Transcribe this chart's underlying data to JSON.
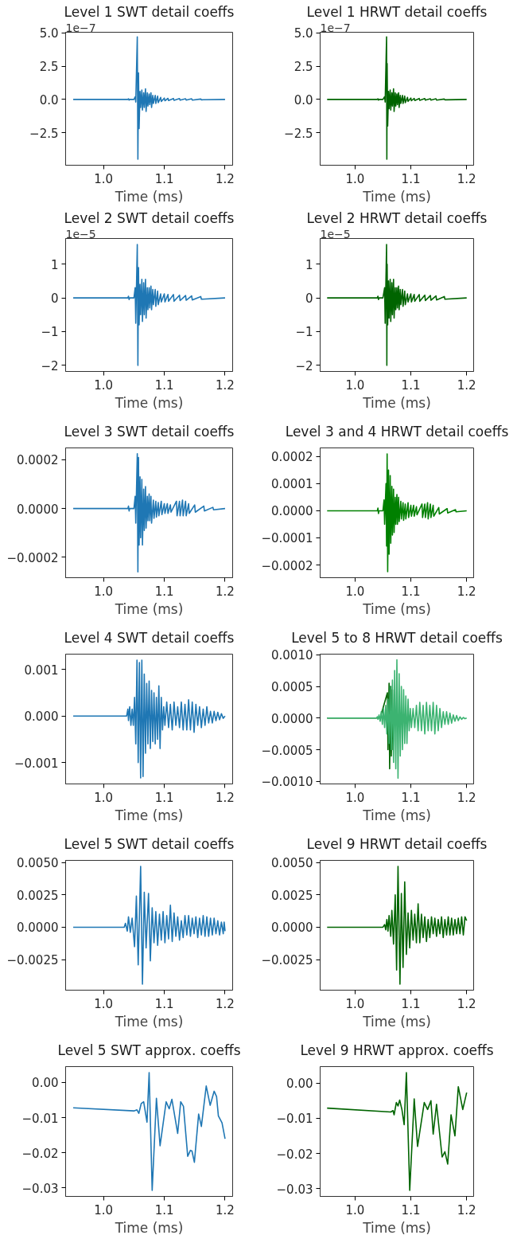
{
  "chart_data": [
    {
      "type": "line",
      "title": "Level 1 SWT detail coeffs",
      "xlabel": "Time (ms)",
      "annotations": [
        "1e−7"
      ],
      "xlim": [
        0.9375,
        1.2125
      ],
      "xticks": [
        {
          "value": 1.0,
          "label": "1.0"
        },
        {
          "value": 1.1,
          "label": "1.1"
        },
        {
          "value": 1.2,
          "label": "1.2"
        }
      ],
      "ylim": [
        -4.95,
        5.05
      ],
      "yticks": [
        {
          "value": -2.5,
          "label": "−2.5"
        },
        {
          "value": 0,
          "label": "0.0"
        },
        {
          "value": 2.5,
          "label": "2.5"
        },
        {
          "value": 5,
          "label": "5.0"
        }
      ],
      "series": [
        {
          "color": "#1f77b4",
          "x": [
            0.95,
            1.04,
            1.041,
            1.042,
            1.043,
            1.05,
            1.052,
            1.053,
            1.0555,
            1.0565,
            1.0575,
            1.0585,
            1.06,
            1.061,
            1.063,
            1.064,
            1.066,
            1.067,
            1.069,
            1.07,
            1.072,
            1.073,
            1.075,
            1.076,
            1.078,
            1.079,
            1.081,
            1.082,
            1.085,
            1.086,
            1.089,
            1.09,
            1.094,
            1.095,
            1.1,
            1.101,
            1.106,
            1.107,
            1.115,
            1.116,
            1.125,
            1.126,
            1.135,
            1.136,
            1.145,
            1.146,
            1.16,
            1.161,
            1.2
          ],
          "values": [
            0,
            0,
            0.05,
            -0.05,
            0,
            0,
            0.2,
            -0.2,
            4.7,
            -4.5,
            2.0,
            -2.2,
            0.6,
            -0.6,
            0.7,
            -0.8,
            0.5,
            -0.6,
            0.8,
            -0.9,
            0.5,
            -0.5,
            0.4,
            -0.4,
            0.5,
            -0.6,
            0.3,
            -0.3,
            0.3,
            -0.3,
            0.25,
            -0.25,
            0.15,
            -0.15,
            0.1,
            -0.1,
            0.08,
            -0.08,
            0.07,
            -0.07,
            0.06,
            -0.06,
            0.05,
            -0.05,
            0.05,
            -0.05,
            0.03,
            -0.03,
            0
          ]
        }
      ]
    },
    {
      "type": "line",
      "title": "Level 1 HRWT detail coeffs",
      "xlabel": "Time (ms)",
      "annotations": [
        "1e−7"
      ],
      "xlim": [
        0.9375,
        1.2125
      ],
      "xticks": [
        {
          "value": 1.0,
          "label": "1.0"
        },
        {
          "value": 1.1,
          "label": "1.1"
        },
        {
          "value": 1.2,
          "label": "1.2"
        }
      ],
      "ylim": [
        -4.95,
        5.05
      ],
      "yticks": [
        {
          "value": -2.5,
          "label": "−2.5"
        },
        {
          "value": 0,
          "label": "0.0"
        },
        {
          "value": 2.5,
          "label": "2.5"
        },
        {
          "value": 5,
          "label": "5.0"
        }
      ],
      "series": [
        {
          "color": "#006400",
          "x": [
            0.95,
            1.04,
            1.041,
            1.042,
            1.043,
            1.05,
            1.053,
            1.054,
            1.0565,
            1.057,
            1.0575,
            1.0585,
            1.06,
            1.061,
            1.063,
            1.064,
            1.066,
            1.067,
            1.069,
            1.07,
            1.072,
            1.073,
            1.075,
            1.076,
            1.078,
            1.079,
            1.081,
            1.082,
            1.085,
            1.086,
            1.089,
            1.09,
            1.094,
            1.095,
            1.1,
            1.101,
            1.106,
            1.107,
            1.115,
            1.116,
            1.125,
            1.126,
            1.135,
            1.136,
            1.145,
            1.146,
            1.16,
            1.161,
            1.2
          ],
          "values": [
            0,
            0,
            0.05,
            -0.05,
            0,
            0,
            0.2,
            -0.2,
            4.7,
            -4.5,
            2.7,
            -2.0,
            0.6,
            -0.7,
            0.7,
            -0.8,
            0.5,
            -0.5,
            0.8,
            -0.9,
            0.5,
            -0.5,
            0.4,
            -0.4,
            0.5,
            -0.6,
            0.3,
            -0.3,
            0.3,
            -0.3,
            0.25,
            -0.25,
            0.15,
            -0.15,
            0.1,
            -0.1,
            0.08,
            -0.08,
            0.07,
            -0.07,
            0.06,
            -0.06,
            0.05,
            -0.05,
            0.05,
            -0.05,
            0.03,
            -0.03,
            0
          ]
        }
      ]
    },
    {
      "type": "line",
      "title": "Level 2 SWT detail coeffs",
      "xlabel": "Time (ms)",
      "annotations": [
        "1e−5"
      ],
      "xlim": [
        0.9375,
        1.2125
      ],
      "xticks": [
        {
          "value": 1.0,
          "label": "1.0"
        },
        {
          "value": 1.1,
          "label": "1.1"
        },
        {
          "value": 1.2,
          "label": "1.2"
        }
      ],
      "ylim": [
        -2.18,
        1.76
      ],
      "yticks": [
        {
          "value": -2,
          "label": "−2"
        },
        {
          "value": -1,
          "label": "−1"
        },
        {
          "value": 0,
          "label": "0"
        },
        {
          "value": 1,
          "label": "1"
        }
      ],
      "series": [
        {
          "color": "#1f77b4",
          "x": [
            0.95,
            1.04,
            1.041,
            1.042,
            1.043,
            1.05,
            1.052,
            1.053,
            1.0555,
            1.0565,
            1.0575,
            1.0585,
            1.06,
            1.061,
            1.063,
            1.064,
            1.066,
            1.067,
            1.069,
            1.07,
            1.072,
            1.073,
            1.075,
            1.076,
            1.078,
            1.079,
            1.081,
            1.082,
            1.085,
            1.086,
            1.089,
            1.09,
            1.094,
            1.095,
            1.1,
            1.101,
            1.106,
            1.107,
            1.115,
            1.116,
            1.125,
            1.126,
            1.135,
            1.136,
            1.145,
            1.146,
            1.16,
            1.161,
            1.2
          ],
          "values": [
            0,
            0,
            0.05,
            -0.05,
            0,
            0,
            0.3,
            -0.75,
            1.58,
            -2.0,
            0.9,
            -0.8,
            0.4,
            -0.5,
            0.55,
            -0.7,
            0.45,
            -0.5,
            0.55,
            -0.6,
            0.3,
            -0.35,
            0.3,
            -0.3,
            0.35,
            -0.35,
            0.25,
            -0.2,
            0.25,
            -0.25,
            0.2,
            -0.2,
            0.12,
            -0.12,
            0.12,
            -0.12,
            0.1,
            -0.1,
            0.1,
            -0.1,
            0.08,
            -0.08,
            0.07,
            -0.07,
            0.06,
            -0.06,
            0.04,
            -0.04,
            0
          ]
        }
      ]
    },
    {
      "type": "line",
      "title": "Level 2 HRWT detail coeffs",
      "xlabel": "Time (ms)",
      "annotations": [
        "1e−5"
      ],
      "xlim": [
        0.9375,
        1.2125
      ],
      "xticks": [
        {
          "value": 1.0,
          "label": "1.0"
        },
        {
          "value": 1.1,
          "label": "1.1"
        },
        {
          "value": 1.2,
          "label": "1.2"
        }
      ],
      "ylim": [
        -2.18,
        1.76
      ],
      "yticks": [
        {
          "value": -2,
          "label": "−2"
        },
        {
          "value": -1,
          "label": "−1"
        },
        {
          "value": 0,
          "label": "0"
        },
        {
          "value": 1,
          "label": "1"
        }
      ],
      "series": [
        {
          "color": "#006400",
          "x": [
            0.95,
            1.04,
            1.041,
            1.042,
            1.043,
            1.05,
            1.053,
            1.054,
            1.0565,
            1.057,
            1.0575,
            1.0585,
            1.06,
            1.061,
            1.063,
            1.064,
            1.066,
            1.067,
            1.069,
            1.07,
            1.072,
            1.073,
            1.075,
            1.076,
            1.078,
            1.079,
            1.081,
            1.082,
            1.085,
            1.086,
            1.089,
            1.09,
            1.094,
            1.095,
            1.1,
            1.101,
            1.106,
            1.107,
            1.115,
            1.116,
            1.125,
            1.126,
            1.135,
            1.136,
            1.145,
            1.146,
            1.16,
            1.161,
            1.2
          ],
          "values": [
            0,
            0,
            0.05,
            -0.05,
            0,
            0,
            0.3,
            -0.75,
            1.58,
            -2.0,
            1.0,
            -0.8,
            0.5,
            -0.6,
            0.55,
            -0.7,
            0.45,
            -0.5,
            0.55,
            -0.6,
            0.3,
            -0.35,
            0.3,
            -0.3,
            0.35,
            -0.35,
            0.25,
            -0.2,
            0.25,
            -0.25,
            0.2,
            -0.2,
            0.12,
            -0.12,
            0.12,
            -0.12,
            0.1,
            -0.1,
            0.1,
            -0.1,
            0.08,
            -0.08,
            0.07,
            -0.07,
            0.06,
            -0.06,
            0.04,
            -0.04,
            0
          ]
        }
      ]
    },
    {
      "type": "line",
      "title": "Level 3 SWT detail coeffs",
      "xlabel": "Time (ms)",
      "xlim": [
        0.9375,
        1.2125
      ],
      "xticks": [
        {
          "value": 1.0,
          "label": "1.0"
        },
        {
          "value": 1.1,
          "label": "1.1"
        },
        {
          "value": 1.2,
          "label": "1.2"
        }
      ],
      "ylim": [
        -0.000284,
        0.000249
      ],
      "yticks": [
        {
          "value": -0.0002,
          "label": "−0.0002"
        },
        {
          "value": 0,
          "label": "0.0000"
        },
        {
          "value": 0.0002,
          "label": "0.0002"
        }
      ],
      "series": [
        {
          "color": "#1f77b4",
          "x": [
            0.95,
            1.04,
            1.041,
            1.042,
            1.043,
            1.05,
            1.052,
            1.053,
            1.0555,
            1.0565,
            1.0575,
            1.0585,
            1.06,
            1.061,
            1.063,
            1.064,
            1.066,
            1.067,
            1.069,
            1.07,
            1.072,
            1.073,
            1.075,
            1.076,
            1.078,
            1.079,
            1.082,
            1.083,
            1.086,
            1.087,
            1.09,
            1.091,
            1.095,
            1.096,
            1.1,
            1.101,
            1.105,
            1.106,
            1.11,
            1.111,
            1.12,
            1.121,
            1.125,
            1.126,
            1.13,
            1.131,
            1.135,
            1.136,
            1.14,
            1.141,
            1.15,
            1.151,
            1.165,
            1.166,
            1.18,
            1.181,
            1.2
          ],
          "values": [
            0,
            0,
            1e-05,
            -1e-05,
            0,
            0,
            5e-05,
            -6e-05,
            0.000225,
            -0.00026,
            0.00021,
            -0.00015,
            0.00013,
            -0.00012,
            0.00012,
            -0.00015,
            8e-05,
            -9e-05,
            9e-05,
            -8e-05,
            5e-05,
            -5e-05,
            6e-05,
            -5e-05,
            5e-05,
            -6e-05,
            3.5e-05,
            -4e-05,
            3e-05,
            -3.5e-05,
            2.5e-05,
            -3e-05,
            3e-05,
            -2.5e-05,
            2e-05,
            -2e-05,
            2e-05,
            -2e-05,
            1.5e-05,
            -1.5e-05,
            3e-05,
            -3e-05,
            3e-05,
            -3e-05,
            3.5e-05,
            -3e-05,
            3e-05,
            -3e-05,
            2e-05,
            -2e-05,
            1.5e-05,
            -1.5e-05,
            1e-05,
            -1e-05,
            5e-06,
            -5e-06,
            0
          ]
        }
      ]
    },
    {
      "type": "line",
      "title": "Level 3 and 4 HRWT detail coeffs",
      "xlabel": "Time (ms)",
      "xlim": [
        0.9375,
        1.2125
      ],
      "xticks": [
        {
          "value": 1.0,
          "label": "1.0"
        },
        {
          "value": 1.1,
          "label": "1.1"
        },
        {
          "value": 1.2,
          "label": "1.2"
        }
      ],
      "ylim": [
        -0.000247,
        0.000232
      ],
      "yticks": [
        {
          "value": -0.0002,
          "label": "−0.0002"
        },
        {
          "value": -0.0001,
          "label": "−0.0001"
        },
        {
          "value": 0,
          "label": "0.0000"
        },
        {
          "value": 0.0001,
          "label": "0.0001"
        },
        {
          "value": 0.0002,
          "label": "0.0002"
        }
      ],
      "series": [
        {
          "color": "#008000",
          "x": [
            0.95,
            1.04,
            1.041,
            1.042,
            1.043,
            1.05,
            1.052,
            1.053,
            1.0555,
            1.0565,
            1.0575,
            1.0585,
            1.06,
            1.061,
            1.063,
            1.064,
            1.066,
            1.067,
            1.069,
            1.07,
            1.072,
            1.073,
            1.075,
            1.076,
            1.078,
            1.079,
            1.082,
            1.083,
            1.086,
            1.087,
            1.09,
            1.091,
            1.095,
            1.096,
            1.1,
            1.101,
            1.105,
            1.106,
            1.11,
            1.111,
            1.12,
            1.121,
            1.125,
            1.126,
            1.13,
            1.131,
            1.135,
            1.136,
            1.14,
            1.141,
            1.15,
            1.151,
            1.165,
            1.166,
            1.18,
            1.181,
            1.2
          ],
          "values": [
            0,
            0,
            1e-05,
            -1e-05,
            0,
            0,
            4e-05,
            -5e-05,
            0.0001,
            -0.00013,
            0.00021,
            -0.000225,
            0.00015,
            -0.00016,
            0.00013,
            -0.00012,
            9e-05,
            -9e-05,
            8e-05,
            -8e-05,
            5e-05,
            -5e-05,
            6e-05,
            -5e-05,
            5e-05,
            -4e-05,
            3.5e-05,
            -3e-05,
            3e-05,
            -3.5e-05,
            2.5e-05,
            -3e-05,
            3e-05,
            -2.5e-05,
            2e-05,
            -2e-05,
            2e-05,
            -2e-05,
            1.5e-05,
            -1.5e-05,
            2.5e-05,
            -2.5e-05,
            2.5e-05,
            -2.5e-05,
            3e-05,
            -3e-05,
            2.5e-05,
            -2.5e-05,
            2e-05,
            -2e-05,
            1.2e-05,
            -1.2e-05,
            8e-06,
            -8e-06,
            4e-06,
            -4e-06,
            0
          ]
        }
      ]
    },
    {
      "type": "line",
      "title": "Level 4 SWT detail coeffs",
      "xlabel": "Time (ms)",
      "xlim": [
        0.9375,
        1.2125
      ],
      "xticks": [
        {
          "value": 1.0,
          "label": "1.0"
        },
        {
          "value": 1.1,
          "label": "1.1"
        },
        {
          "value": 1.2,
          "label": "1.2"
        }
      ],
      "ylim": [
        -0.00146,
        0.00133
      ],
      "yticks": [
        {
          "value": -0.001,
          "label": "−0.001"
        },
        {
          "value": 0,
          "label": "0.000"
        },
        {
          "value": 0.001,
          "label": "0.001"
        }
      ],
      "series": [
        {
          "color": "#1f77b4",
          "x": [
            0.95,
            1.038,
            1.04,
            1.041,
            1.043,
            1.045,
            1.047,
            1.049,
            1.051,
            1.053,
            1.055,
            1.057,
            1.059,
            1.061,
            1.063,
            1.065,
            1.067,
            1.069,
            1.071,
            1.073,
            1.075,
            1.077,
            1.079,
            1.081,
            1.083,
            1.085,
            1.087,
            1.089,
            1.091,
            1.093,
            1.095,
            1.097,
            1.099,
            1.101,
            1.104,
            1.107,
            1.11,
            1.113,
            1.116,
            1.119,
            1.122,
            1.125,
            1.128,
            1.131,
            1.134,
            1.137,
            1.14,
            1.143,
            1.146,
            1.149,
            1.152,
            1.155,
            1.158,
            1.161,
            1.164,
            1.167,
            1.17,
            1.173,
            1.176,
            1.179,
            1.182,
            1.185,
            1.188,
            1.191,
            1.194,
            1.197,
            1.2
          ],
          "values": [
            0,
            0,
            0.00015,
            -0.0001,
            0.0002,
            -0.0002,
            0.00015,
            -0.0002,
            0.0004,
            -0.0006,
            0.0012,
            -0.001,
            0.00115,
            -0.00133,
            0.0012,
            -0.0013,
            0.0009,
            -0.0008,
            0.0007,
            -0.0006,
            0.00075,
            -0.0007,
            0.00055,
            -0.00055,
            0.0005,
            -0.0006,
            0.0004,
            -0.0005,
            0.00065,
            -0.0007,
            0.0004,
            -0.0003,
            0.0002,
            -0.0002,
            0.0003,
            -0.00025,
            0.00025,
            -0.0003,
            0.0003,
            -0.0002,
            0.0002,
            -0.00025,
            0.0003,
            -0.0003,
            0.00025,
            -0.0003,
            0.00035,
            -0.0003,
            0.0003,
            -0.00035,
            0.00025,
            -0.0002,
            0.0002,
            -0.00025,
            0.00015,
            -0.0002,
            0.0002,
            -0.00015,
            0.0001,
            -0.00015,
            0.0001,
            -0.0001,
            8e-05,
            -8e-05,
            5e-05,
            -5e-05,
            0
          ]
        }
      ]
    },
    {
      "type": "line",
      "title": "Level 5 to 8 HRWT detail coeffs",
      "xlabel": "Time (ms)",
      "xlim": [
        0.9375,
        1.2125
      ],
      "xticks": [
        {
          "value": 1.0,
          "label": "1.0"
        },
        {
          "value": 1.1,
          "label": "1.1"
        },
        {
          "value": 1.2,
          "label": "1.2"
        }
      ],
      "ylim": [
        -0.00104,
        0.00101
      ],
      "yticks": [
        {
          "value": -0.001,
          "label": "−0.0010"
        },
        {
          "value": -0.0005,
          "label": "−0.0005"
        },
        {
          "value": 0,
          "label": "0.0000"
        },
        {
          "value": 0.0005,
          "label": "0.0005"
        },
        {
          "value": 0.001,
          "label": "0.0010"
        }
      ],
      "series": [
        {
          "color": "#006400",
          "x": [
            0.95,
            1.045,
            1.058,
            1.059,
            1.061,
            1.062,
            1.064,
            1.065,
            1.067,
            1.068,
            1.07
          ],
          "values": [
            0,
            0,
            0.0004,
            -0.0005,
            0.00055,
            -0.0008,
            0.0005,
            -0.0006,
            0.00045,
            -0.0005,
            0
          ]
        },
        {
          "color": "#3cb371",
          "x": [
            0.95,
            1.038,
            1.04,
            1.041,
            1.043,
            1.045,
            1.047,
            1.049,
            1.051,
            1.053,
            1.055,
            1.057,
            1.059,
            1.061,
            1.063,
            1.065,
            1.067,
            1.069,
            1.071,
            1.073,
            1.075,
            1.077,
            1.079,
            1.081,
            1.083,
            1.085,
            1.087,
            1.089,
            1.091,
            1.093,
            1.095,
            1.097,
            1.099,
            1.101,
            1.104,
            1.107,
            1.11,
            1.113,
            1.116,
            1.119,
            1.122,
            1.125,
            1.128,
            1.131,
            1.134,
            1.137,
            1.14,
            1.143,
            1.146,
            1.149,
            1.152,
            1.155,
            1.158,
            1.161,
            1.164,
            1.167,
            1.17,
            1.173,
            1.176,
            1.179,
            1.182,
            1.185,
            1.188,
            1.191,
            1.194,
            1.197,
            1.2
          ],
          "values": [
            0,
            0,
            2e-05,
            -2e-05,
            5e-05,
            -5e-05,
            0.0001,
            -0.0001,
            0.00015,
            -0.00015,
            0.0002,
            -0.00025,
            0.0003,
            -0.0004,
            0.0005,
            -0.0005,
            0.0006,
            -0.0007,
            0.00075,
            -0.0008,
            0.00092,
            -0.00095,
            0.0007,
            -0.0006,
            0.0005,
            -0.0005,
            0.00045,
            -0.0004,
            0.00035,
            -0.0004,
            0.0003,
            -0.0002,
            0.00015,
            -0.00015,
            0.00015,
            -0.00015,
            0.0002,
            -0.0002,
            0.00025,
            -0.0002,
            0.0002,
            -0.00025,
            0.00025,
            -0.0002,
            0.0002,
            -0.0002,
            0.00025,
            -0.00025,
            0.0002,
            -0.0002,
            0.00015,
            -0.00015,
            0.0001,
            -0.0001,
            0.0001,
            -0.0001,
            8e-05,
            -8e-05,
            5e-05,
            -5e-05,
            4e-05,
            -4e-05,
            2e-05,
            -2e-05,
            1e-05,
            -1e-05,
            0
          ]
        }
      ]
    },
    {
      "type": "line",
      "title": "Level 5 SWT detail coeffs",
      "xlabel": "Time (ms)",
      "xlim": [
        0.9375,
        1.2125
      ],
      "xticks": [
        {
          "value": 1.0,
          "label": "1.0"
        },
        {
          "value": 1.1,
          "label": "1.1"
        },
        {
          "value": 1.2,
          "label": "1.2"
        }
      ],
      "ylim": [
        -0.00486,
        0.00516
      ],
      "yticks": [
        {
          "value": -0.0025,
          "label": "−0.0025"
        },
        {
          "value": 0,
          "label": "0.0000"
        },
        {
          "value": 0.0025,
          "label": "0.0025"
        },
        {
          "value": 0.005,
          "label": "0.0050"
        }
      ],
      "series": [
        {
          "color": "#1f77b4",
          "x": [
            0.95,
            1.034,
            1.036,
            1.039,
            1.041,
            1.044,
            1.047,
            1.051,
            1.054,
            1.057,
            1.061,
            1.064,
            1.067,
            1.07,
            1.074,
            1.077,
            1.08,
            1.083,
            1.086,
            1.089,
            1.092,
            1.095,
            1.098,
            1.101,
            1.104,
            1.107,
            1.11,
            1.113,
            1.116,
            1.119,
            1.122,
            1.125,
            1.128,
            1.131,
            1.134,
            1.137,
            1.14,
            1.143,
            1.146,
            1.149,
            1.152,
            1.155,
            1.158,
            1.161,
            1.164,
            1.167,
            1.17,
            1.173,
            1.176,
            1.179,
            1.182,
            1.185,
            1.188,
            1.191,
            1.194,
            1.197,
            1.1985,
            1.2
          ],
          "values": [
            0,
            0,
            0.0003,
            -0.0003,
            0.0008,
            -0.0004,
            0.0007,
            -0.0015,
            0.0024,
            -0.0029,
            0.0047,
            -0.0044,
            0.0027,
            -0.0016,
            0.0026,
            -0.0026,
            0.0015,
            -0.0012,
            0.0012,
            -0.0014,
            0.001,
            -0.001,
            0.0012,
            -0.0012,
            0.0009,
            -0.0009,
            0.0017,
            -0.0011,
            0.0011,
            -0.0007,
            0.0008,
            -0.001,
            0.0005,
            -0.0008,
            0.0009,
            -0.0006,
            0.0009,
            -0.0007,
            0.0007,
            -0.0005,
            0.0008,
            -0.0008,
            0.0007,
            -0.0006,
            0.0009,
            -0.0007,
            0.0008,
            -0.0007,
            0.0007,
            -0.0006,
            0.0007,
            -0.0005,
            0.0005,
            -0.0006,
            0.0004,
            -0.0005,
            0.0004,
            -0.0003
          ]
        }
      ]
    },
    {
      "type": "line",
      "title": "Level 9 HRWT detail coeffs",
      "xlabel": "Time (ms)",
      "xlim": [
        0.9375,
        1.2125
      ],
      "xticks": [
        {
          "value": 1.0,
          "label": "1.0"
        },
        {
          "value": 1.1,
          "label": "1.1"
        },
        {
          "value": 1.2,
          "label": "1.2"
        }
      ],
      "ylim": [
        -0.00486,
        0.00516
      ],
      "yticks": [
        {
          "value": -0.0025,
          "label": "−0.0025"
        },
        {
          "value": 0,
          "label": "0.0000"
        },
        {
          "value": 0.0025,
          "label": "0.0025"
        },
        {
          "value": 0.005,
          "label": "0.0050"
        }
      ],
      "series": [
        {
          "color": "#006400",
          "x": [
            0.95,
            1.05,
            1.053,
            1.055,
            1.057,
            1.059,
            1.061,
            1.064,
            1.066,
            1.069,
            1.072,
            1.0745,
            1.077,
            1.0805,
            1.083,
            1.086,
            1.089,
            1.092,
            1.095,
            1.098,
            1.101,
            1.104,
            1.107,
            1.11,
            1.113,
            1.116,
            1.119,
            1.122,
            1.125,
            1.128,
            1.131,
            1.134,
            1.137,
            1.14,
            1.143,
            1.146,
            1.149,
            1.152,
            1.155,
            1.158,
            1.161,
            1.164,
            1.167,
            1.17,
            1.173,
            1.176,
            1.179,
            1.182,
            1.185,
            1.188,
            1.191,
            1.194,
            1.197,
            1.2
          ],
          "values": [
            0,
            0,
            0.0002,
            -0.0002,
            0.0006,
            -0.0003,
            0.0009,
            -0.0007,
            0.0013,
            -0.0013,
            0.0025,
            -0.0033,
            0.0047,
            -0.0044,
            0.0026,
            -0.0031,
            0.0035,
            -0.0021,
            0.0011,
            -0.0016,
            0.0013,
            -0.001,
            0.001,
            -0.0012,
            0.0018,
            -0.0012,
            0.001,
            -0.0008,
            0.0008,
            -0.0011,
            0.0006,
            -0.0008,
            0.0008,
            -0.0005,
            0.0007,
            -0.0007,
            0.0006,
            -0.0005,
            0.0008,
            -0.0008,
            0.0006,
            -0.0006,
            0.0008,
            -0.0006,
            0.0007,
            -0.0006,
            0.0006,
            -0.0005,
            0.0007,
            -0.0005,
            0.0008,
            -0.0006,
            0.0008,
            0.0005
          ]
        }
      ]
    },
    {
      "type": "line",
      "title": "Level 5 SWT approx. coeffs",
      "xlabel": "Time (ms)",
      "xlim": [
        0.9375,
        1.2125
      ],
      "xticks": [
        {
          "value": 1.0,
          "label": "1.0"
        },
        {
          "value": 1.1,
          "label": "1.1"
        },
        {
          "value": 1.2,
          "label": "1.2"
        }
      ],
      "ylim": [
        -0.0324,
        0.0045
      ],
      "yticks": [
        {
          "value": -0.03,
          "label": "−0.03"
        },
        {
          "value": -0.02,
          "label": "−0.02"
        },
        {
          "value": -0.01,
          "label": "−0.01"
        },
        {
          "value": 0,
          "label": "0.00"
        }
      ],
      "series": [
        {
          "color": "#1f77b4",
          "x": [
            0.95,
            1.05,
            1.055,
            1.058,
            1.062,
            1.066,
            1.0715,
            1.075,
            1.08,
            1.087,
            1.093,
            1.103,
            1.108,
            1.1125,
            1.122,
            1.127,
            1.1315,
            1.1385,
            1.143,
            1.1455,
            1.1495,
            1.1565,
            1.161,
            1.169,
            1.1755,
            1.182,
            1.186,
            1.189,
            1.195,
            1.2
          ],
          "values": [
            -0.0072,
            -0.0081,
            -0.0078,
            -0.0088,
            -0.006,
            -0.0055,
            -0.0113,
            0.0028,
            -0.0307,
            -0.0045,
            -0.018,
            -0.0055,
            -0.0075,
            -0.0048,
            -0.0145,
            -0.0055,
            -0.0068,
            -0.021,
            -0.0193,
            -0.0195,
            -0.0227,
            -0.009,
            -0.0125,
            -0.001,
            -0.0065,
            -0.0025,
            -0.004,
            -0.0095,
            -0.0115,
            -0.016
          ]
        }
      ]
    },
    {
      "type": "line",
      "title": "Level 9 HRWT approx. coeffs",
      "xlabel": "Time (ms)",
      "xlim": [
        0.9375,
        1.2125
      ],
      "xticks": [
        {
          "value": 1.0,
          "label": "1.0"
        },
        {
          "value": 1.1,
          "label": "1.1"
        },
        {
          "value": 1.2,
          "label": "1.2"
        }
      ],
      "ylim": [
        -0.0322,
        0.0047
      ],
      "yticks": [
        {
          "value": -0.03,
          "label": "−0.03"
        },
        {
          "value": -0.02,
          "label": "−0.02"
        },
        {
          "value": -0.01,
          "label": "−0.01"
        },
        {
          "value": 0,
          "label": "0.00"
        }
      ],
      "series": [
        {
          "color": "#006400",
          "x": [
            0.95,
            1.064,
            1.068,
            1.07,
            1.074,
            1.077,
            1.08,
            1.084,
            1.088,
            1.092,
            1.098,
            1.106,
            1.112,
            1.124,
            1.13,
            1.136,
            1.14,
            1.146,
            1.156,
            1.161,
            1.166,
            1.172,
            1.179,
            1.185,
            1.193,
            1.2
          ],
          "values": [
            -0.0071,
            -0.0082,
            -0.0078,
            -0.009,
            -0.0055,
            -0.0065,
            -0.0048,
            -0.0075,
            -0.0118,
            0.003,
            -0.0305,
            -0.0045,
            -0.018,
            -0.0055,
            -0.0075,
            -0.005,
            -0.0145,
            -0.006,
            -0.021,
            -0.0195,
            -0.023,
            -0.009,
            -0.015,
            -0.001,
            -0.0075,
            -0.0027
          ]
        }
      ]
    }
  ]
}
